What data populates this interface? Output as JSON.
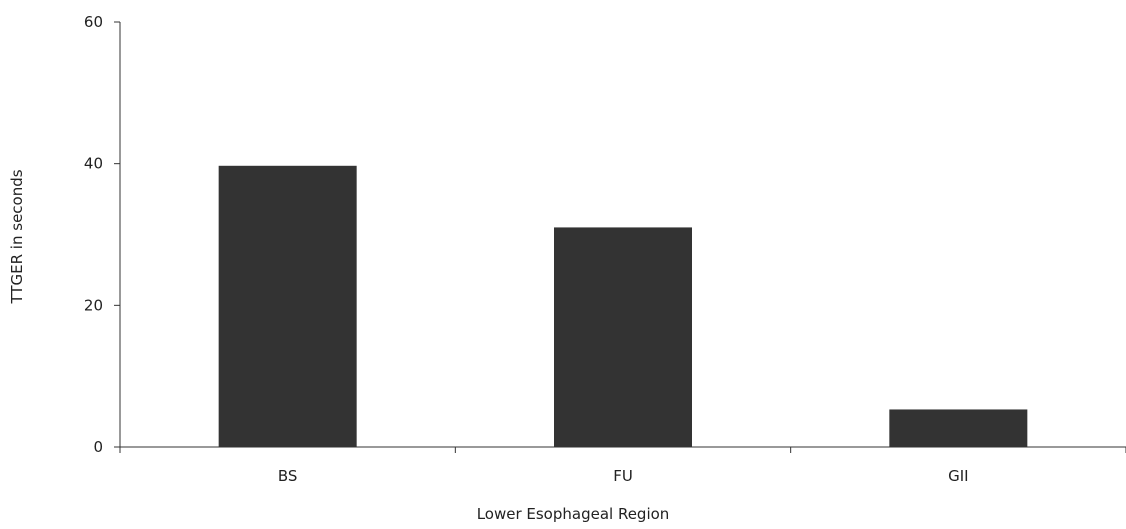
{
  "chart_data": {
    "type": "bar",
    "title": "",
    "xlabel": "Lower Esophageal Region",
    "ylabel": "TTGER in seconds",
    "categories": [
      "BS",
      "FU",
      "GII"
    ],
    "values": [
      39.7,
      31.0,
      5.3
    ],
    "ylim": [
      0,
      60
    ],
    "yticks": [
      0,
      20,
      40,
      60
    ],
    "grid": false,
    "legend": "none",
    "bar_color": "#333333",
    "axis_color": "#333333"
  }
}
